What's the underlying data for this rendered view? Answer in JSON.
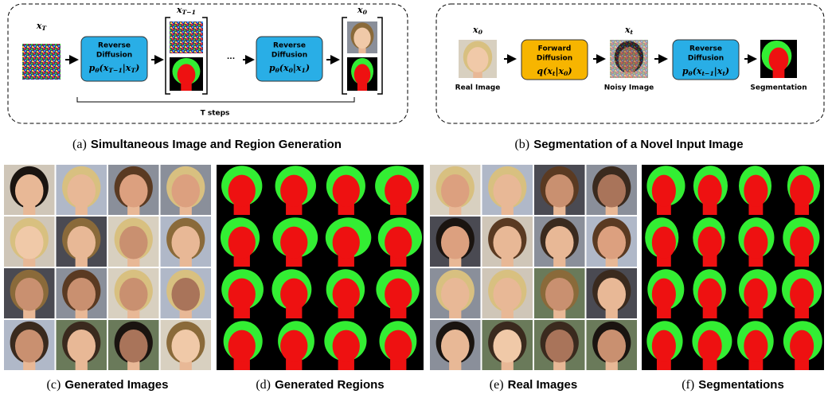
{
  "panel_a": {
    "label_xT": [
      {
        "text": "x"
      },
      {
        "sub": "T"
      }
    ],
    "label_xT1": [
      {
        "text": "x"
      },
      {
        "sub": "T−1"
      }
    ],
    "label_x0": [
      {
        "text": "x"
      },
      {
        "sub": "0"
      }
    ],
    "step_1": {
      "line1": "Reverse",
      "line2": "Diffusion",
      "formula": [
        {
          "text": "p"
        },
        {
          "sub": "θ"
        },
        {
          "text": "(x"
        },
        {
          "sub": "T−1"
        },
        {
          "text": "|x"
        },
        {
          "sub": "T"
        },
        {
          "text": ")"
        }
      ]
    },
    "ellipsis": "···",
    "step_2": {
      "line1": "Reverse",
      "line2": "Diffusion",
      "formula": [
        {
          "text": "p"
        },
        {
          "sub": "θ"
        },
        {
          "text": "(x"
        },
        {
          "sub": "0"
        },
        {
          "text": "|x"
        },
        {
          "sub": "1"
        },
        {
          "text": ")"
        }
      ]
    },
    "steps_label": "T steps",
    "caption": {
      "label": "(a)",
      "text": "Simultaneous Image and Region Generation"
    }
  },
  "panel_b": {
    "label_x0": [
      {
        "text": "x"
      },
      {
        "sub": "0"
      }
    ],
    "real_image": "Real Image",
    "forward": {
      "line1": "Forward",
      "line2": "Diffusion",
      "formula": [
        {
          "text": "q(x"
        },
        {
          "sub": "t"
        },
        {
          "text": "|x"
        },
        {
          "sub": "0"
        },
        {
          "text": ")"
        }
      ]
    },
    "label_xt": [
      {
        "text": "x"
      },
      {
        "sub": "t"
      }
    ],
    "noisy_image": "Noisy Image",
    "reverse": {
      "line1": "Reverse",
      "line2": "Diffusion",
      "formula": [
        {
          "text": "p"
        },
        {
          "sub": "θ"
        },
        {
          "text": "(x"
        },
        {
          "sub": "t−1"
        },
        {
          "text": "|x"
        },
        {
          "sub": "t"
        },
        {
          "text": ")"
        }
      ]
    },
    "segmentation": "Segmentation",
    "caption": {
      "label": "(b)",
      "text": "Segmentation of a Novel Input Image"
    }
  },
  "grids": [
    {
      "kind": "faces",
      "caption": {
        "label": "(c)",
        "text": "Generated Images"
      }
    },
    {
      "kind": "regions",
      "caption": {
        "label": "(d)",
        "text": "Generated Regions"
      }
    },
    {
      "kind": "faces",
      "caption": {
        "label": "(e)",
        "text": "Real Images"
      }
    },
    {
      "kind": "regions",
      "caption": {
        "label": "(f)",
        "text": "Segmentations"
      }
    }
  ]
}
